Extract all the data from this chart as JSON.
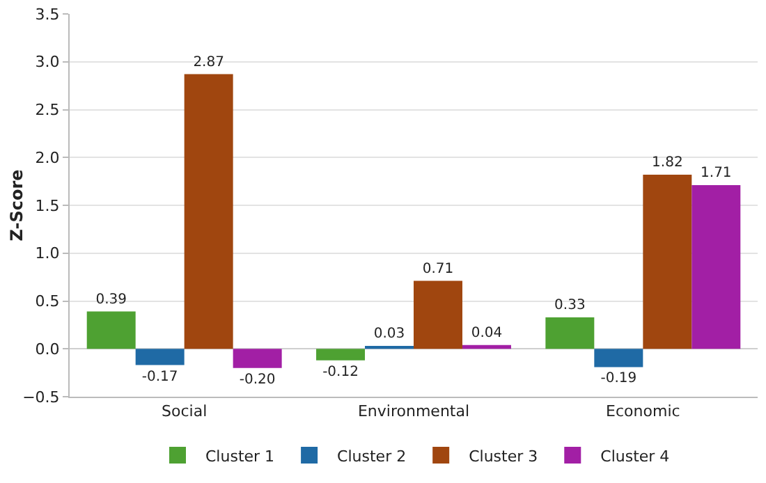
{
  "chart_data": {
    "type": "bar",
    "ylabel": "Z-Score",
    "categories": [
      "Social",
      "Environmental",
      "Economic"
    ],
    "series": [
      {
        "name": "Cluster 1",
        "color": "#4ea132",
        "values": [
          0.39,
          -0.12,
          0.33
        ],
        "value_labels": [
          "0.39",
          "-0.12",
          "0.33"
        ]
      },
      {
        "name": "Cluster 2",
        "color": "#1f6aa5",
        "values": [
          -0.17,
          0.03,
          -0.19
        ],
        "value_labels": [
          "-0.17",
          "0.03",
          "-0.19"
        ]
      },
      {
        "name": "Cluster 3",
        "color": "#a0460f",
        "values": [
          2.87,
          0.71,
          1.82
        ],
        "value_labels": [
          "2.87",
          "0.71",
          "1.82"
        ]
      },
      {
        "name": "Cluster 4",
        "color": "#a21fa5",
        "values": [
          -0.2,
          0.04,
          1.71
        ],
        "value_labels": [
          "-0.20",
          "0.04",
          "1.71"
        ]
      }
    ],
    "ylim": [
      -0.5,
      3.5
    ],
    "yticks": [
      {
        "value": -0.5,
        "label": "−0.5"
      },
      {
        "value": 0,
        "label": "0.0"
      },
      {
        "value": 0.5,
        "label": "0.5"
      },
      {
        "value": 1,
        "label": "1.0"
      },
      {
        "value": 1.5,
        "label": "1.5"
      },
      {
        "value": 2,
        "label": "2.0"
      },
      {
        "value": 2.5,
        "label": "2.5"
      },
      {
        "value": 3,
        "label": "3.0"
      },
      {
        "value": 3.5,
        "label": "3.5"
      }
    ],
    "grid": "y",
    "legend": "bottom"
  }
}
